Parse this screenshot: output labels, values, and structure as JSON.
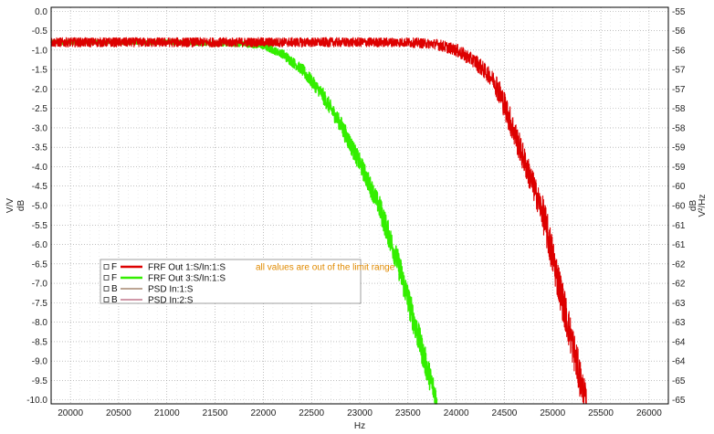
{
  "chart_data": {
    "type": "line",
    "xlabel": "Hz",
    "ylabel_left_top": "V/V",
    "ylabel_left_bottom": "dB",
    "ylabel_right_top": "dB",
    "ylabel_right_bottom": "V²/Hz",
    "xlim": [
      19800,
      26200
    ],
    "ylim_left": [
      -10.1,
      0.1
    ],
    "x_ticks": [
      "20000",
      "20500",
      "21000",
      "21500",
      "22000",
      "22500",
      "23000",
      "23500",
      "24000",
      "24500",
      "25000",
      "25500",
      "26000"
    ],
    "y_left_ticks": [
      "0.0",
      "-0.5",
      "-1.0",
      "-1.5",
      "-2.0",
      "-2.5",
      "-3.0",
      "-3.5",
      "-4.0",
      "-4.5",
      "-5.0",
      "-5.5",
      "-6.0",
      "-6.5",
      "-7.0",
      "-7.5",
      "-8.0",
      "-8.5",
      "-9.0",
      "-9.5",
      "-10.0"
    ],
    "y_right_ticks": [
      "-55",
      "-56",
      "-56",
      "-57",
      "-57",
      "-58",
      "-58",
      "-59",
      "-59",
      "-60",
      "-60",
      "-61",
      "-61",
      "-62",
      "-62",
      "-63",
      "-63",
      "-64",
      "-64",
      "-65",
      "-65"
    ],
    "grid": true,
    "legend_position": "center-left",
    "series": [
      {
        "name": "FRF Out 1:S/In:1:S",
        "legend_prefix": "F",
        "color": "#dd0000",
        "note": "all values are out of the limit range",
        "x": [
          19800,
          20500,
          21000,
          21500,
          22000,
          22500,
          23000,
          23500,
          23800,
          24000,
          24200,
          24400,
          24500,
          24700,
          24900,
          25000,
          25100,
          25200,
          25300,
          25350
        ],
        "y": [
          -0.8,
          -0.8,
          -0.8,
          -0.8,
          -0.8,
          -0.8,
          -0.8,
          -0.8,
          -0.85,
          -1.0,
          -1.3,
          -1.8,
          -2.4,
          -3.8,
          -5.2,
          -6.3,
          -7.4,
          -8.5,
          -9.6,
          -10.0
        ],
        "noise": 0.12
      },
      {
        "name": "FRF Out 3:S/In:1:S",
        "legend_prefix": "F",
        "color": "#33ee00",
        "note": "",
        "x": [
          19800,
          21000,
          21800,
          22000,
          22200,
          22400,
          22600,
          22800,
          23000,
          23200,
          23400,
          23500,
          23600,
          23700,
          23800
        ],
        "y": [
          -0.8,
          -0.8,
          -0.85,
          -0.9,
          -1.1,
          -1.5,
          -2.1,
          -2.9,
          -3.9,
          -5.0,
          -6.5,
          -7.4,
          -8.3,
          -9.2,
          -10.0
        ],
        "noise": 0.06
      },
      {
        "name": "PSD In:1:S",
        "legend_prefix": "B",
        "color": "#7a4b2a",
        "note": "",
        "x": [],
        "y": []
      },
      {
        "name": "PSD In:2:S",
        "legend_prefix": "B",
        "color": "#a03050",
        "note": "",
        "x": [],
        "y": []
      }
    ]
  }
}
